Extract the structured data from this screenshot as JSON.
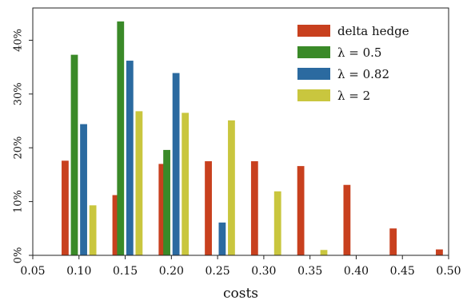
{
  "chart_data": {
    "type": "bar",
    "title": "",
    "xlabel": "costs",
    "ylabel": "",
    "xlim": [
      0.05,
      0.5
    ],
    "ylim": [
      0,
      0.46
    ],
    "xticks": [
      0.05,
      0.1,
      0.15,
      0.2,
      0.25,
      0.3,
      0.35,
      0.4,
      0.45,
      0.5
    ],
    "xtick_labels": [
      "0.05",
      "0.10",
      "0.15",
      "0.20",
      "0.25",
      "0.30",
      "0.35",
      "0.40",
      "0.45",
      "0.50"
    ],
    "yticks": [
      0,
      0.1,
      0.2,
      0.3,
      0.4
    ],
    "ytick_labels": [
      "0%",
      "10%",
      "20%",
      "30%",
      "40%"
    ],
    "grid": false,
    "legend_position": "top-right",
    "series": [
      {
        "name": "delta hedge",
        "color": "#c8401e",
        "points": [
          {
            "x": 0.085,
            "y": 0.176
          },
          {
            "x": 0.14,
            "y": 0.112
          },
          {
            "x": 0.19,
            "y": 0.17
          },
          {
            "x": 0.24,
            "y": 0.175
          },
          {
            "x": 0.29,
            "y": 0.175
          },
          {
            "x": 0.34,
            "y": 0.166
          },
          {
            "x": 0.39,
            "y": 0.131
          },
          {
            "x": 0.44,
            "y": 0.05
          },
          {
            "x": 0.49,
            "y": 0.011
          }
        ]
      },
      {
        "name": "λ = 0.5",
        "color": "#3a8a28",
        "points": [
          {
            "x": 0.095,
            "y": 0.373
          },
          {
            "x": 0.145,
            "y": 0.435
          },
          {
            "x": 0.195,
            "y": 0.196
          }
        ]
      },
      {
        "name": "λ = 0.82",
        "color": "#2b6aa0",
        "points": [
          {
            "x": 0.105,
            "y": 0.244
          },
          {
            "x": 0.155,
            "y": 0.362
          },
          {
            "x": 0.205,
            "y": 0.339
          },
          {
            "x": 0.255,
            "y": 0.061
          }
        ]
      },
      {
        "name": "λ = 2",
        "color": "#c9c63e",
        "points": [
          {
            "x": 0.115,
            "y": 0.093
          },
          {
            "x": 0.165,
            "y": 0.268
          },
          {
            "x": 0.215,
            "y": 0.265
          },
          {
            "x": 0.265,
            "y": 0.251
          },
          {
            "x": 0.315,
            "y": 0.119
          },
          {
            "x": 0.365,
            "y": 0.01
          }
        ]
      }
    ]
  }
}
